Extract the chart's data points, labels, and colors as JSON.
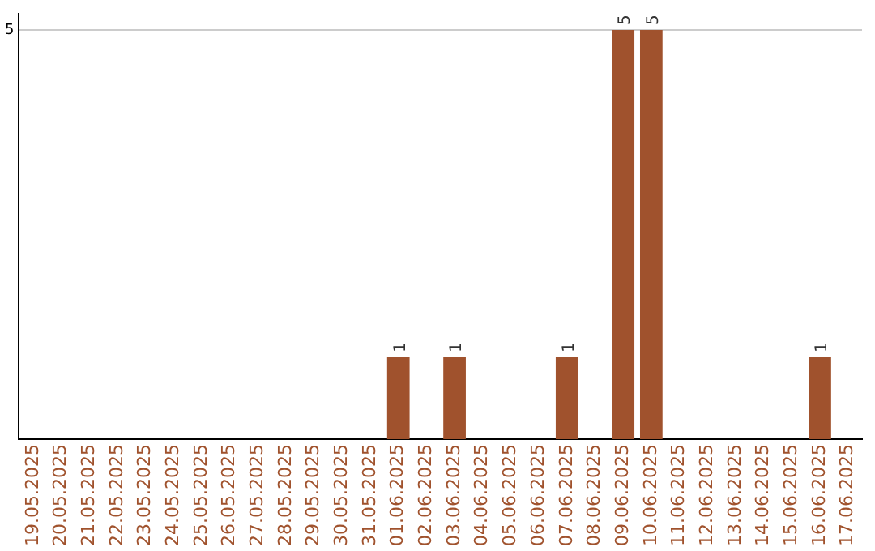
{
  "chart_data": {
    "type": "bar",
    "categories": [
      "19.05.2025",
      "20.05.2025",
      "21.05.2025",
      "22.05.2025",
      "23.05.2025",
      "24.05.2025",
      "25.05.2025",
      "26.05.2025",
      "27.05.2025",
      "28.05.2025",
      "29.05.2025",
      "30.05.2025",
      "31.05.2025",
      "01.06.2025",
      "02.06.2025",
      "03.06.2025",
      "04.06.2025",
      "05.06.2025",
      "06.06.2025",
      "07.06.2025",
      "08.06.2025",
      "09.06.2025",
      "10.06.2025",
      "11.06.2025",
      "12.06.2025",
      "13.06.2025",
      "14.06.2025",
      "15.06.2025",
      "16.06.2025",
      "17.06.2025"
    ],
    "values": [
      null,
      null,
      null,
      null,
      null,
      null,
      null,
      null,
      null,
      null,
      null,
      null,
      null,
      1,
      null,
      1,
      null,
      null,
      null,
      1,
      null,
      5,
      5,
      null,
      null,
      null,
      null,
      null,
      1,
      null
    ],
    "color": "#a0522d",
    "ylim": [
      0,
      5.2
    ],
    "yticks": [
      5
    ],
    "grid": "y",
    "legend": false,
    "data_labels": true
  }
}
